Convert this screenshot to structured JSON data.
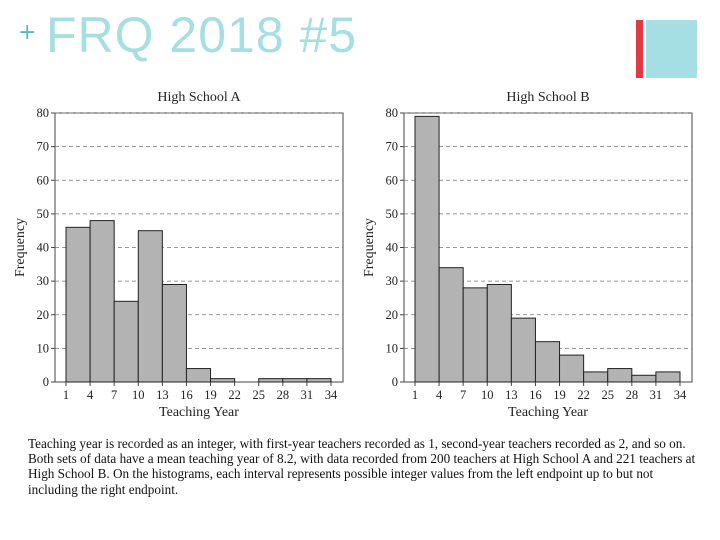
{
  "slide": {
    "title": "FRQ 2018 #5",
    "plus": "+",
    "colors": {
      "title": "#a6dfe3",
      "accent_red": "#e23a43",
      "accent_teal": "#a6dfe3",
      "bar_fill": "#b3b3b3"
    }
  },
  "chart_data": [
    {
      "type": "bar",
      "title": "High School A",
      "xlabel": "Teaching Year",
      "ylabel": "Frequency",
      "ylim": [
        0,
        80
      ],
      "yticks": [
        0,
        10,
        20,
        30,
        40,
        50,
        60,
        70,
        80
      ],
      "xticks": [
        1,
        4,
        7,
        10,
        13,
        16,
        19,
        22,
        25,
        28,
        31,
        34
      ],
      "bins": [
        [
          1,
          4
        ],
        [
          4,
          7
        ],
        [
          7,
          10
        ],
        [
          10,
          13
        ],
        [
          13,
          16
        ],
        [
          16,
          19
        ],
        [
          19,
          22
        ],
        [
          22,
          25
        ],
        [
          25,
          28
        ],
        [
          28,
          31
        ],
        [
          31,
          34
        ]
      ],
      "values": [
        46,
        48,
        24,
        45,
        29,
        4,
        1,
        0,
        1,
        1,
        1
      ],
      "grid": "dashed horizontal"
    },
    {
      "type": "bar",
      "title": "High School B",
      "xlabel": "Teaching Year",
      "ylabel": "Frequency",
      "ylim": [
        0,
        80
      ],
      "yticks": [
        0,
        10,
        20,
        30,
        40,
        50,
        60,
        70,
        80
      ],
      "xticks": [
        1,
        4,
        7,
        10,
        13,
        16,
        19,
        22,
        25,
        28,
        31,
        34
      ],
      "bins": [
        [
          1,
          4
        ],
        [
          4,
          7
        ],
        [
          7,
          10
        ],
        [
          10,
          13
        ],
        [
          13,
          16
        ],
        [
          16,
          19
        ],
        [
          19,
          22
        ],
        [
          22,
          25
        ],
        [
          25,
          28
        ],
        [
          28,
          31
        ],
        [
          31,
          34
        ]
      ],
      "values": [
        79,
        34,
        28,
        29,
        19,
        12,
        8,
        3,
        4,
        2,
        3
      ],
      "grid": "dashed horizontal"
    }
  ],
  "caption": "Teaching year is recorded as an integer, with first-year teachers recorded as 1, second-year teachers recorded as 2, and so on. Both sets of data have a mean teaching year of 8.2, with data recorded from 200 teachers at High School A and 221 teachers at High School B. On the histograms, each interval represents possible integer values from the left endpoint up to but not including the right endpoint."
}
